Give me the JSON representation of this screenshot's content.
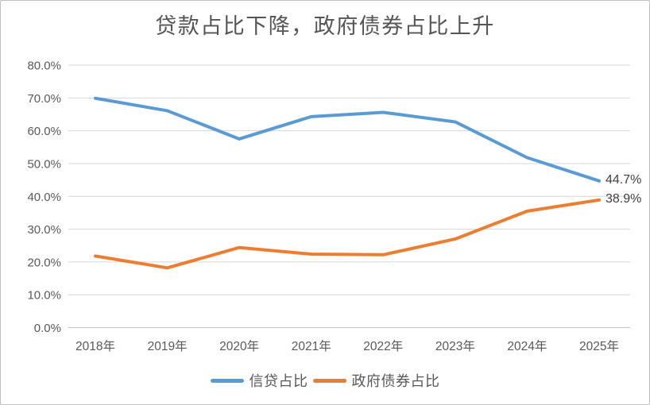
{
  "frame": {
    "background": "#FFFFFF",
    "border_color": "#BFBFBF"
  },
  "chart_data": {
    "type": "line",
    "title": "贷款占比下降，政府债券占比上升",
    "categories": [
      "2018年",
      "2019年",
      "2020年",
      "2021年",
      "2022年",
      "2023年",
      "2024年",
      "2025年"
    ],
    "series": [
      {
        "name": "信贷占比",
        "color": "#5B9BD5",
        "values": [
          69.9,
          66.1,
          57.5,
          64.3,
          65.6,
          62.7,
          51.8,
          44.7
        ],
        "end_label": "44.7%"
      },
      {
        "name": "政府债券占比",
        "color": "#ED7D31",
        "values": [
          21.8,
          18.2,
          24.4,
          22.4,
          22.2,
          27.0,
          35.5,
          38.9
        ],
        "end_label": "38.9%"
      }
    ],
    "y_axis": {
      "min": 0,
      "max": 80,
      "step": 10,
      "tick_labels": [
        "0.0%",
        "10.0%",
        "20.0%",
        "30.0%",
        "40.0%",
        "50.0%",
        "60.0%",
        "70.0%",
        "80.0%"
      ]
    },
    "grid": true,
    "legend_position": "bottom",
    "gridline_color": "#D6D6D6",
    "axis_text_color": "#595959",
    "data_label_color": "#3F3F3F"
  }
}
